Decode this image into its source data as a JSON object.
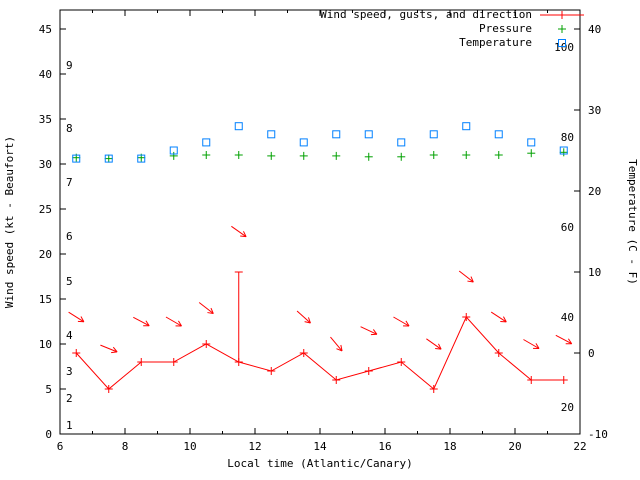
{
  "figure": {
    "background": "#ffffff",
    "axis_color": "#000000"
  },
  "legend": [
    {
      "label": "Wind speed, gusts, and direction",
      "color": "#ff0000",
      "marker": "line-plus"
    },
    {
      "label": "Pressure",
      "color": "#00a000",
      "marker": "plus"
    },
    {
      "label": "Temperature",
      "color": "#0080ff",
      "marker": "square"
    }
  ],
  "chart_data": {
    "type": "line",
    "title": "",
    "xlabel": "Local time (Atlantic/Canary)",
    "ylabel_left": "Wind speed (kt - Beaufort)",
    "ylabel_right": "Temperature (C - F)",
    "legend_position": "top-right-inside",
    "grid": false,
    "x_range": [
      6,
      22
    ],
    "x_ticks": [
      6,
      8,
      10,
      12,
      14,
      16,
      18,
      20,
      22
    ],
    "y_left_range": [
      0,
      47
    ],
    "y_left_ticks": [
      0,
      5,
      10,
      15,
      20,
      25,
      30,
      35,
      40,
      45
    ],
    "y_right_range_C": [
      -10,
      40
    ],
    "y_right_ticks_C": [
      -10,
      0,
      10,
      20,
      30,
      40
    ],
    "beaufort_scale": [
      {
        "beaufort": 1,
        "kt": 1
      },
      {
        "beaufort": 2,
        "kt": 4
      },
      {
        "beaufort": 3,
        "kt": 7
      },
      {
        "beaufort": 4,
        "kt": 11
      },
      {
        "beaufort": 5,
        "kt": 17
      },
      {
        "beaufort": 6,
        "kt": 22
      },
      {
        "beaufort": 7,
        "kt": 28
      },
      {
        "beaufort": 8,
        "kt": 34
      },
      {
        "beaufort": 9,
        "kt": 41
      }
    ],
    "fahrenheit_scale": [
      20,
      40,
      60,
      80,
      100
    ],
    "x": [
      6.5,
      7.5,
      8.5,
      9.5,
      10.5,
      11.5,
      12.5,
      13.5,
      14.5,
      15.5,
      16.5,
      17.5,
      18.5,
      19.5,
      20.5,
      21.5
    ],
    "series": [
      {
        "name": "Wind speed",
        "unit": "kt",
        "axis": "left",
        "style": "line-plus",
        "color": "#ff0000",
        "values": [
          9,
          5,
          8,
          8,
          10,
          8,
          7,
          9,
          6,
          7,
          8,
          5,
          13,
          9,
          6,
          6
        ]
      },
      {
        "name": "Wind gusts",
        "unit": "kt",
        "axis": "left",
        "style": "errorbar",
        "color": "#ff0000",
        "values": [
          null,
          null,
          null,
          null,
          null,
          18,
          null,
          null,
          null,
          null,
          null,
          null,
          null,
          null,
          null,
          null
        ]
      },
      {
        "name": "Pressure",
        "unit": "unlabeled-axis",
        "axis": "left",
        "style": "plus",
        "color": "#00a000",
        "values": [
          30.7,
          30.6,
          30.7,
          30.9,
          31.0,
          31.0,
          30.9,
          30.9,
          30.9,
          30.8,
          30.8,
          31.0,
          31.0,
          31.0,
          31.2,
          31.3
        ]
      },
      {
        "name": "Temperature",
        "unit": "C",
        "axis": "right",
        "style": "square",
        "color": "#0080ff",
        "values": [
          24,
          24,
          24,
          25,
          26,
          28,
          27,
          26,
          27,
          27,
          26,
          27,
          28,
          27,
          26,
          25
        ]
      }
    ],
    "wind_direction_arrows": [
      {
        "t": 6.5,
        "kt": 13,
        "angle_deg": 32
      },
      {
        "t": 7.5,
        "kt": 9.5,
        "angle_deg": 22
      },
      {
        "t": 8.5,
        "kt": 12.5,
        "angle_deg": 28
      },
      {
        "t": 9.5,
        "kt": 12.5,
        "angle_deg": 30
      },
      {
        "t": 10.5,
        "kt": 14,
        "angle_deg": 38
      },
      {
        "t": 11.5,
        "kt": 22.5,
        "angle_deg": 35
      },
      {
        "t": 13.5,
        "kt": 13,
        "angle_deg": 42
      },
      {
        "t": 14.5,
        "kt": 10,
        "angle_deg": 50
      },
      {
        "t": 15.5,
        "kt": 11.5,
        "angle_deg": 25
      },
      {
        "t": 16.5,
        "kt": 12.5,
        "angle_deg": 30
      },
      {
        "t": 17.5,
        "kt": 10,
        "angle_deg": 35
      },
      {
        "t": 18.5,
        "kt": 17.5,
        "angle_deg": 38
      },
      {
        "t": 19.5,
        "kt": 13,
        "angle_deg": 33
      },
      {
        "t": 20.5,
        "kt": 10,
        "angle_deg": 30
      },
      {
        "t": 21.5,
        "kt": 10.5,
        "angle_deg": 28
      }
    ]
  }
}
